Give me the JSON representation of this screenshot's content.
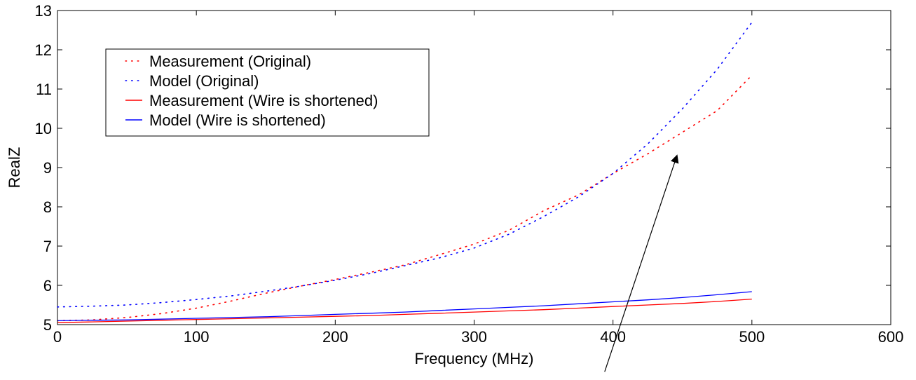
{
  "chart_data": {
    "type": "line",
    "xlabel": "Frequency (MHz)",
    "ylabel": "RealZ",
    "xlim": [
      0,
      600
    ],
    "ylim": [
      5,
      13
    ],
    "xticks": [
      0,
      100,
      200,
      300,
      400,
      500,
      600
    ],
    "yticks": [
      5,
      6,
      7,
      8,
      9,
      10,
      11,
      12,
      13
    ],
    "xtick_labels": [
      "0",
      "100",
      "200",
      "300",
      "400",
      "500",
      "600"
    ],
    "ytick_labels": [
      "5",
      "6",
      "7",
      "8",
      "9",
      "10",
      "11",
      "12",
      "13"
    ],
    "grid": false,
    "legend_position": "top-left",
    "x": [
      0,
      25,
      50,
      75,
      100,
      125,
      150,
      175,
      200,
      225,
      250,
      275,
      300,
      325,
      350,
      375,
      400,
      425,
      450,
      475,
      500
    ],
    "series": [
      {
        "name": "Measurement (Original)",
        "color": "#ff0000",
        "style": "dotted",
        "values": [
          5.1,
          5.12,
          5.18,
          5.28,
          5.42,
          5.6,
          5.8,
          5.98,
          6.15,
          6.33,
          6.52,
          6.78,
          7.05,
          7.4,
          7.9,
          8.3,
          8.85,
          9.35,
          9.9,
          10.45,
          11.35
        ]
      },
      {
        "name": "Model (Original)",
        "color": "#0000ff",
        "style": "dotted",
        "values": [
          5.45,
          5.47,
          5.5,
          5.56,
          5.64,
          5.73,
          5.85,
          5.98,
          6.13,
          6.3,
          6.5,
          6.7,
          6.95,
          7.3,
          7.75,
          8.25,
          8.85,
          9.6,
          10.5,
          11.5,
          12.7
        ]
      },
      {
        "name": "Measurement (Wire is shortened)",
        "color": "#ff0000",
        "style": "solid",
        "values": [
          5.05,
          5.07,
          5.09,
          5.11,
          5.13,
          5.15,
          5.17,
          5.19,
          5.21,
          5.23,
          5.26,
          5.29,
          5.32,
          5.35,
          5.38,
          5.42,
          5.46,
          5.5,
          5.54,
          5.59,
          5.65
        ]
      },
      {
        "name": "Model (Wire is shortened)",
        "color": "#0000ff",
        "style": "solid",
        "values": [
          5.1,
          5.11,
          5.12,
          5.14,
          5.16,
          5.18,
          5.2,
          5.23,
          5.26,
          5.29,
          5.32,
          5.36,
          5.4,
          5.44,
          5.48,
          5.53,
          5.58,
          5.63,
          5.69,
          5.76,
          5.84
        ]
      }
    ],
    "annotations": [
      {
        "type": "arrow",
        "from": [
          394,
          3.8
        ],
        "to": [
          446,
          9.3
        ]
      }
    ]
  }
}
